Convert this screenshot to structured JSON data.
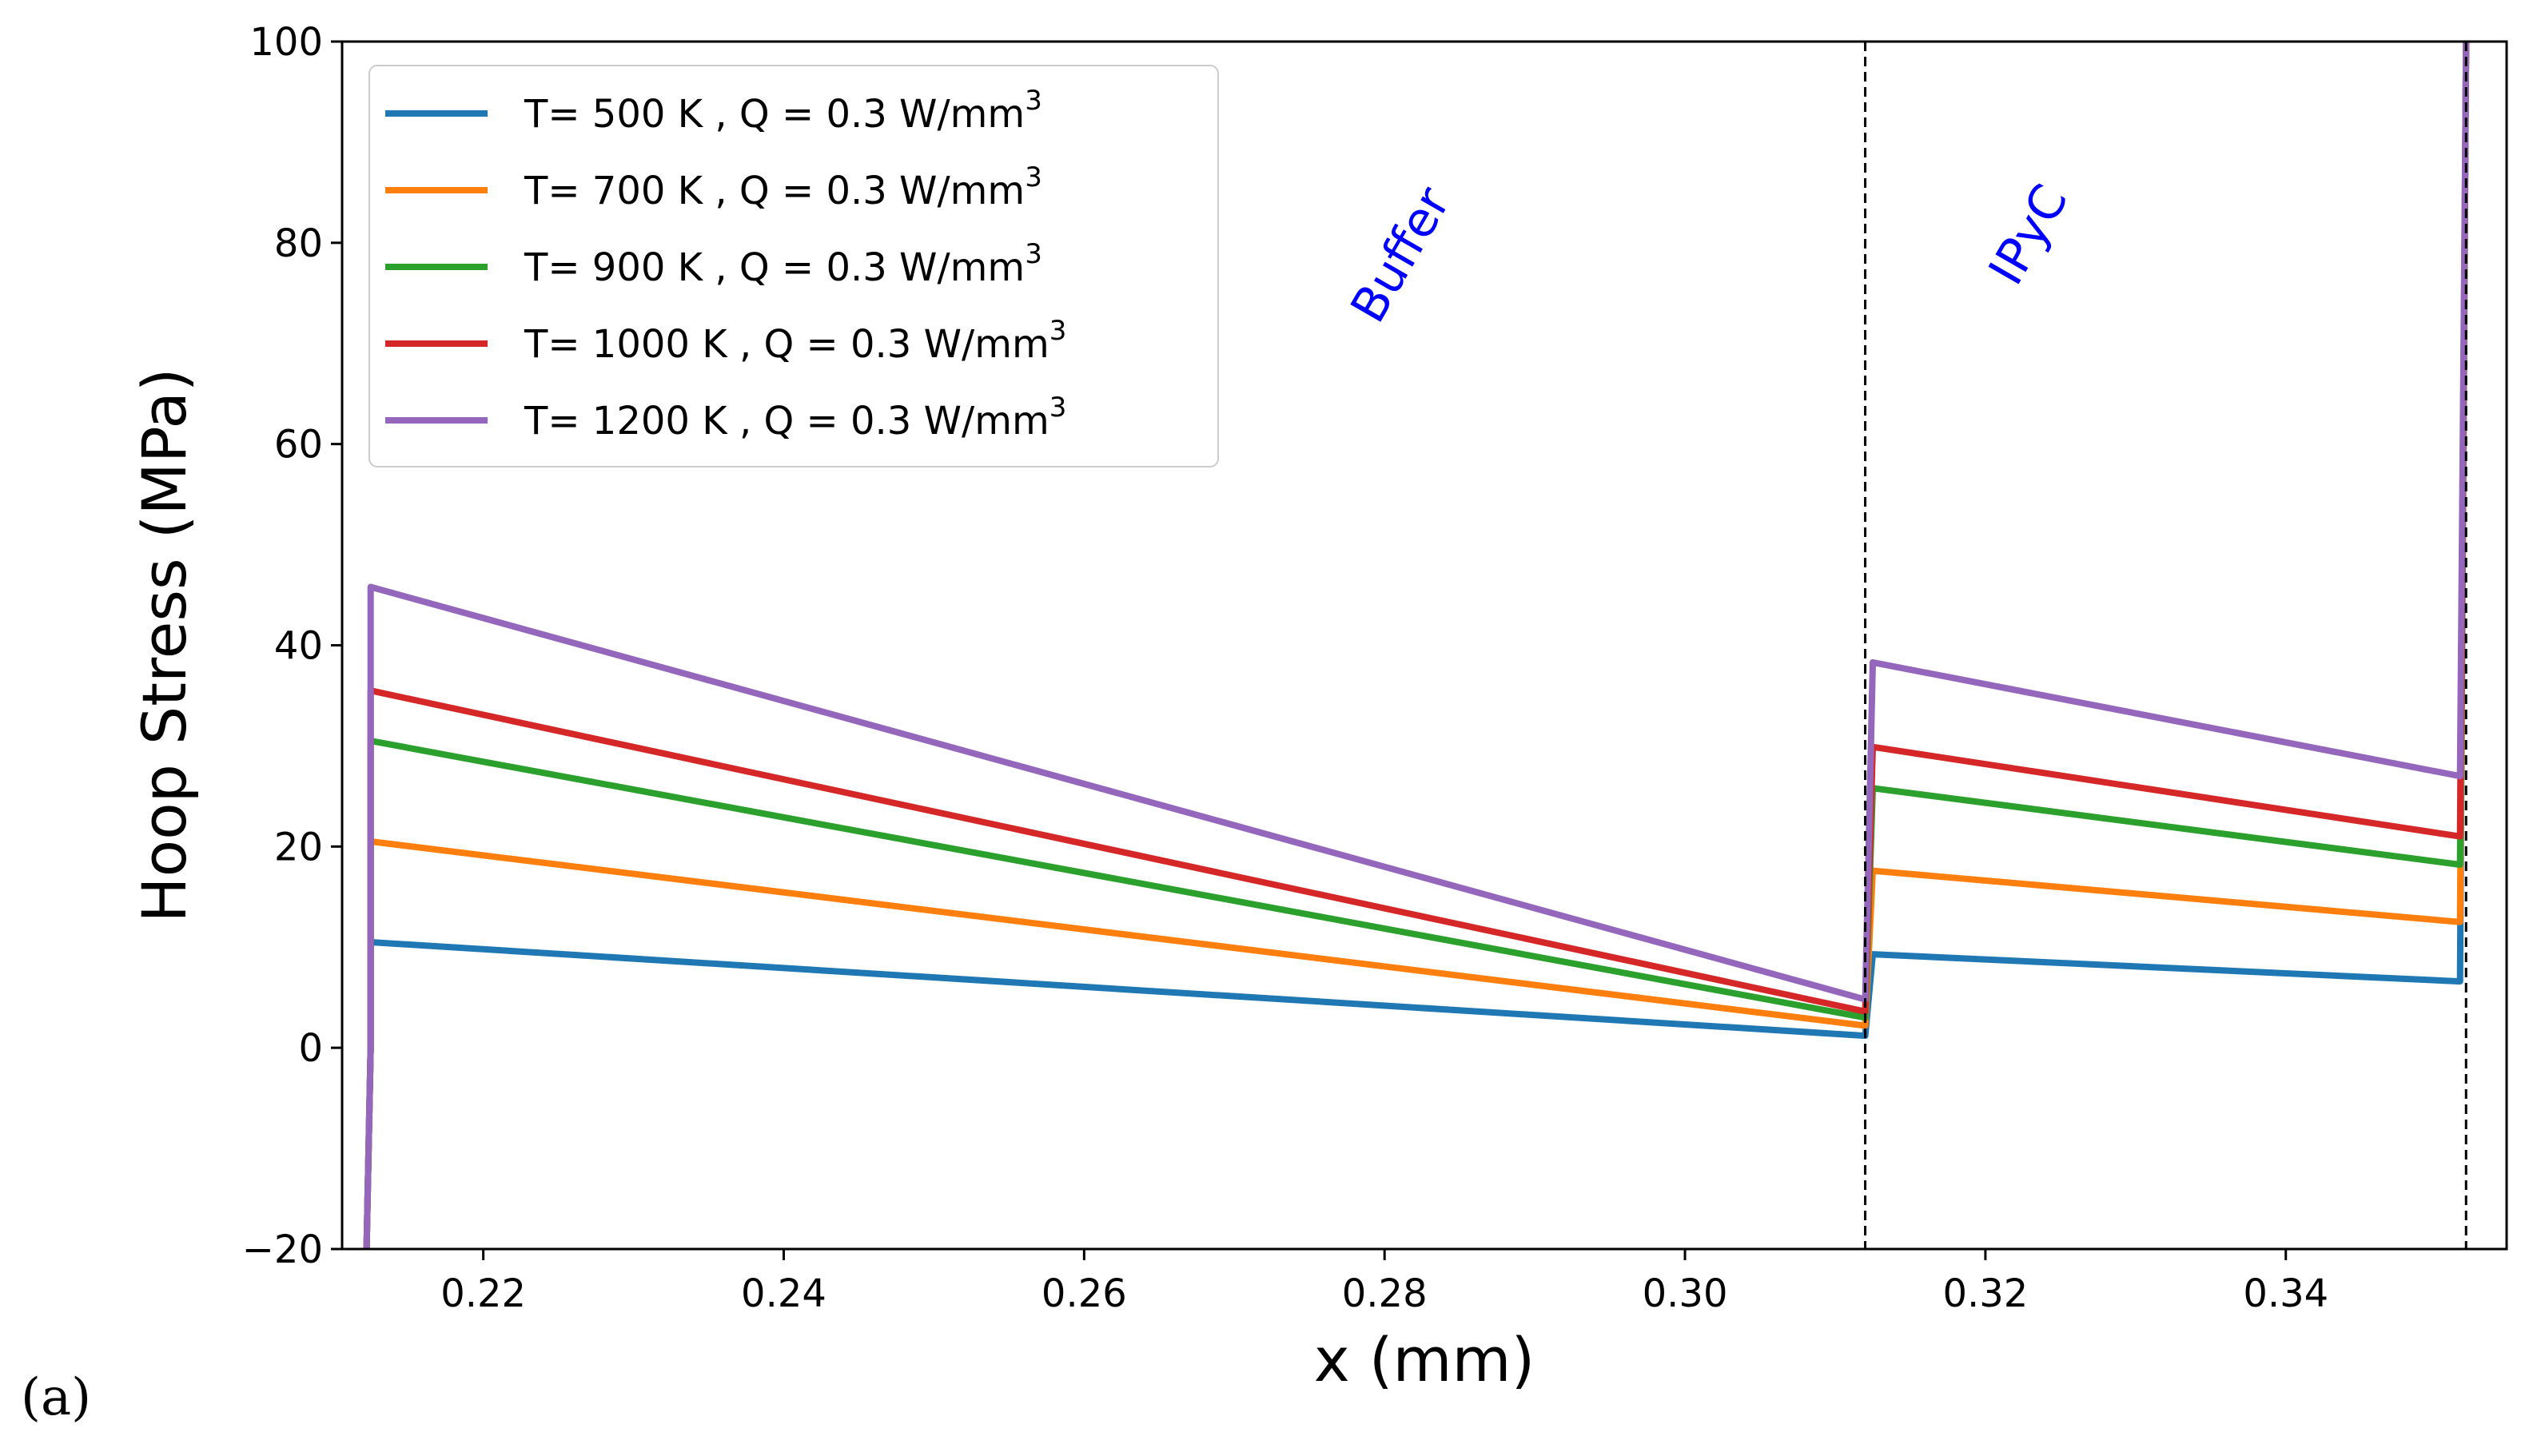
{
  "panel_label": "(a)",
  "chart_data": {
    "type": "line",
    "title": "",
    "xlabel": "x (mm)",
    "ylabel": "Hoop Stress (MPa)",
    "xlim": [
      0.2106,
      0.3547
    ],
    "ylim": [
      -20,
      100
    ],
    "xticks": [
      0.22,
      0.24,
      0.26,
      0.28,
      0.3,
      0.32,
      0.34
    ],
    "xtick_labels": [
      "0.22",
      "0.24",
      "0.26",
      "0.28",
      "0.30",
      "0.32",
      "0.34"
    ],
    "yticks": [
      -20,
      0,
      20,
      40,
      60,
      80,
      100
    ],
    "ytick_labels": [
      "−20",
      "0",
      "20",
      "40",
      "60",
      "80",
      "100"
    ],
    "grid": false,
    "legend_position": "top-left",
    "vlines": [
      0.312,
      0.352
    ],
    "annotations": [
      {
        "text": "Buffer",
        "x": 0.282,
        "y": 78,
        "rotation": -60,
        "color": "#0000ff"
      },
      {
        "text": "IPyC",
        "x": 0.3238,
        "y": 80,
        "rotation": -60,
        "color": "#0000ff"
      }
    ],
    "series": [
      {
        "name": "T= 500 K , Q = 0.3 W/mm",
        "superscript": "3",
        "color": "#1f77b4",
        "x": [
          0.2122,
          0.2125,
          0.2125,
          0.312,
          0.312,
          0.3125,
          0.3125,
          0.3516,
          0.3516,
          0.352
        ],
        "y": [
          -22,
          0,
          10.5,
          1.2,
          1.2,
          9.3,
          9.3,
          6.6,
          6.6,
          100
        ]
      },
      {
        "name": "T= 700 K , Q = 0.3 W/mm",
        "superscript": "3",
        "color": "#ff7f0e",
        "x": [
          0.2122,
          0.2125,
          0.2125,
          0.312,
          0.312,
          0.3125,
          0.3125,
          0.3516,
          0.3516,
          0.352
        ],
        "y": [
          -22,
          0,
          20.5,
          2.2,
          2.2,
          17.6,
          17.6,
          12.5,
          12.5,
          100
        ]
      },
      {
        "name": "T= 900 K , Q = 0.3 W/mm",
        "superscript": "3",
        "color": "#2ca02c",
        "x": [
          0.2122,
          0.2125,
          0.2125,
          0.312,
          0.312,
          0.3125,
          0.3125,
          0.3516,
          0.3516,
          0.352
        ],
        "y": [
          -22,
          0,
          30.5,
          3.0,
          3.0,
          25.8,
          25.8,
          18.2,
          18.2,
          100
        ]
      },
      {
        "name": "T= 1000 K , Q = 0.3 W/mm",
        "superscript": "3",
        "color": "#d62728",
        "x": [
          0.2122,
          0.2125,
          0.2125,
          0.312,
          0.312,
          0.3125,
          0.3125,
          0.3516,
          0.3516,
          0.352
        ],
        "y": [
          -22,
          0,
          35.5,
          3.6,
          3.6,
          29.9,
          29.9,
          21.0,
          21.0,
          100
        ]
      },
      {
        "name": "T= 1200 K , Q = 0.3 W/mm",
        "superscript": "3",
        "color": "#9467bd",
        "x": [
          0.2122,
          0.2125,
          0.2125,
          0.312,
          0.312,
          0.3125,
          0.3125,
          0.3516,
          0.3516,
          0.352
        ],
        "y": [
          -22,
          0,
          45.8,
          4.8,
          4.8,
          38.3,
          38.3,
          27.0,
          27.0,
          100
        ]
      }
    ]
  }
}
